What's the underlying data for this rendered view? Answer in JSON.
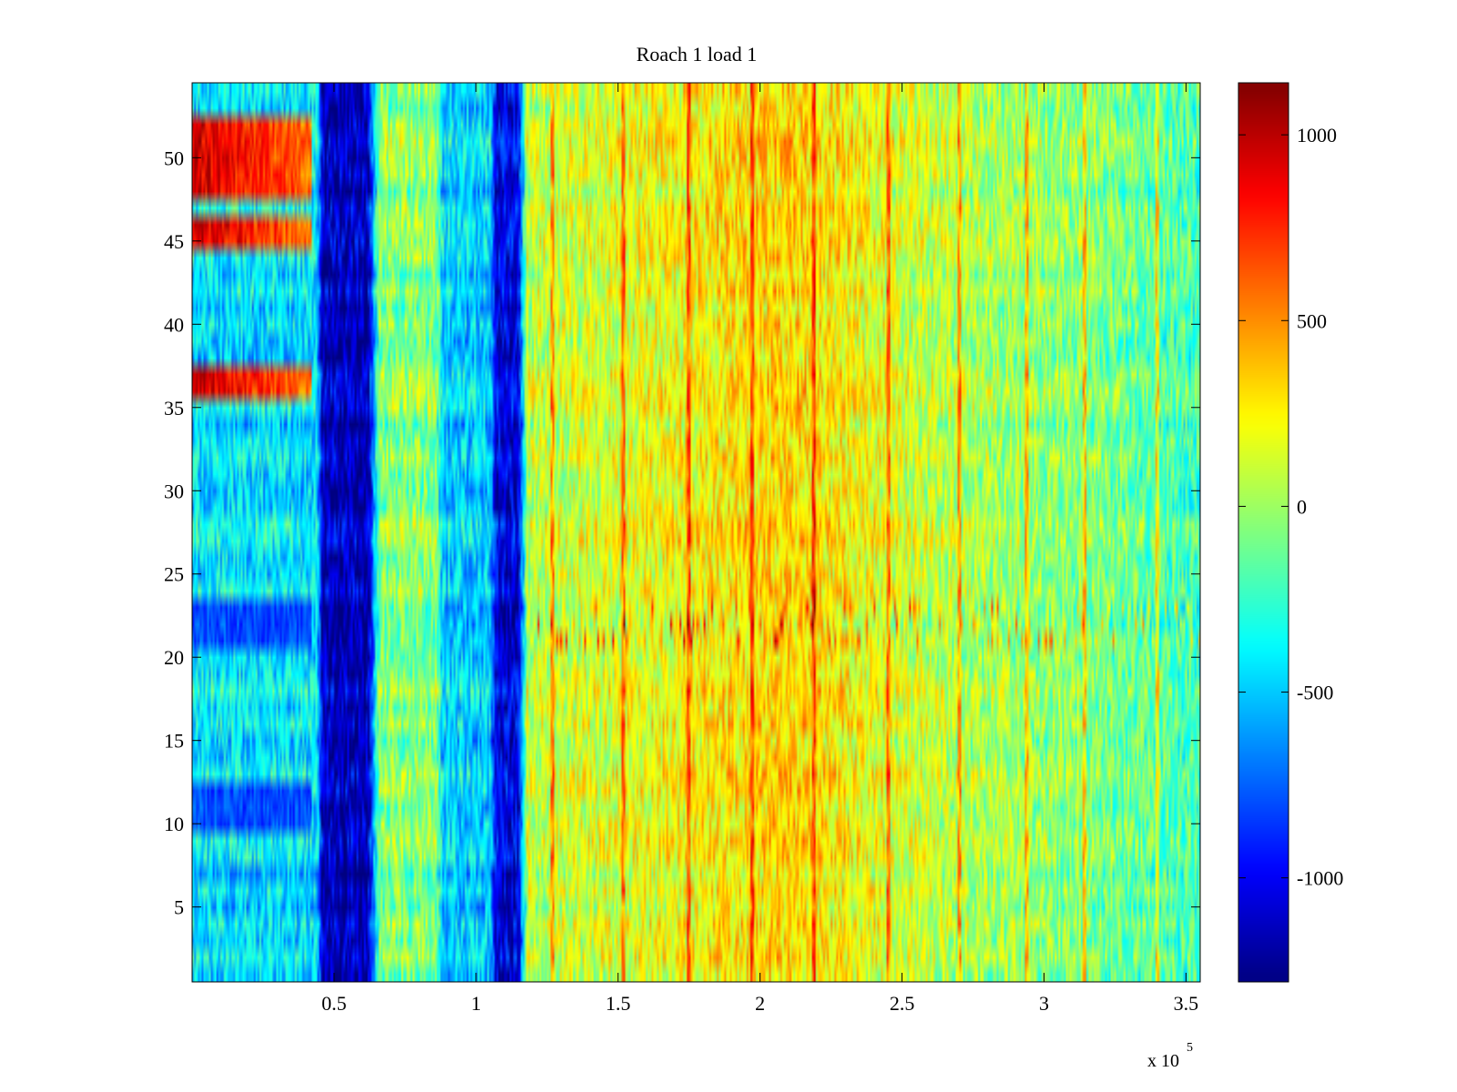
{
  "chart_data": {
    "type": "heatmap",
    "title": "Roach 1 load 1",
    "x_ticks": [
      0.5,
      1,
      1.5,
      2,
      2.5,
      3,
      3.5
    ],
    "x_tick_labels": [
      "0.5",
      "1",
      "1.5",
      "2",
      "2.5",
      "3",
      "3.5"
    ],
    "x_exponent_label": "x 10",
    "x_exponent": "5",
    "xlim": [
      0,
      3.55
    ],
    "y_ticks": [
      5,
      10,
      15,
      20,
      25,
      30,
      35,
      40,
      45,
      50
    ],
    "y_tick_labels": [
      "5",
      "10",
      "15",
      "20",
      "25",
      "30",
      "35",
      "40",
      "45",
      "50"
    ],
    "ylim": [
      0.5,
      54.5
    ],
    "rows": 54,
    "colorbar": {
      "colormap": "jet",
      "clim": [
        -1280,
        1140
      ],
      "ticks": [
        1000,
        500,
        0,
        -500,
        -1000
      ],
      "tick_labels": [
        "1000",
        "500",
        "0",
        "-500",
        "-1000"
      ]
    },
    "column_profile": {
      "x": [
        0,
        0.44,
        0.46,
        0.62,
        0.66,
        0.86,
        0.88,
        1.05,
        1.07,
        1.15,
        1.18,
        1.6,
        1.9,
        2.1,
        2.3,
        2.5,
        2.8,
        3.1,
        3.35,
        3.55
      ],
      "value": [
        -420,
        -440,
        -1150,
        -1150,
        -60,
        -60,
        -480,
        -480,
        -1050,
        -1050,
        80,
        180,
        280,
        330,
        240,
        120,
        20,
        -40,
        -150,
        -220
      ]
    },
    "row_offsets_left_region": [
      {
        "rows": [
          48,
          52
        ],
        "value": 950
      },
      {
        "rows": [
          45,
          46
        ],
        "value": 950
      },
      {
        "rows": [
          36,
          37
        ],
        "value": 950
      },
      {
        "rows": [
          21,
          23
        ],
        "value": -800
      },
      {
        "rows": [
          10,
          12
        ],
        "value": -800
      }
    ],
    "bright_vertical_lines_x": [
      1.27,
      1.52,
      1.75,
      1.97,
      2.19,
      2.45,
      2.7,
      2.94,
      3.14,
      3.4
    ]
  }
}
